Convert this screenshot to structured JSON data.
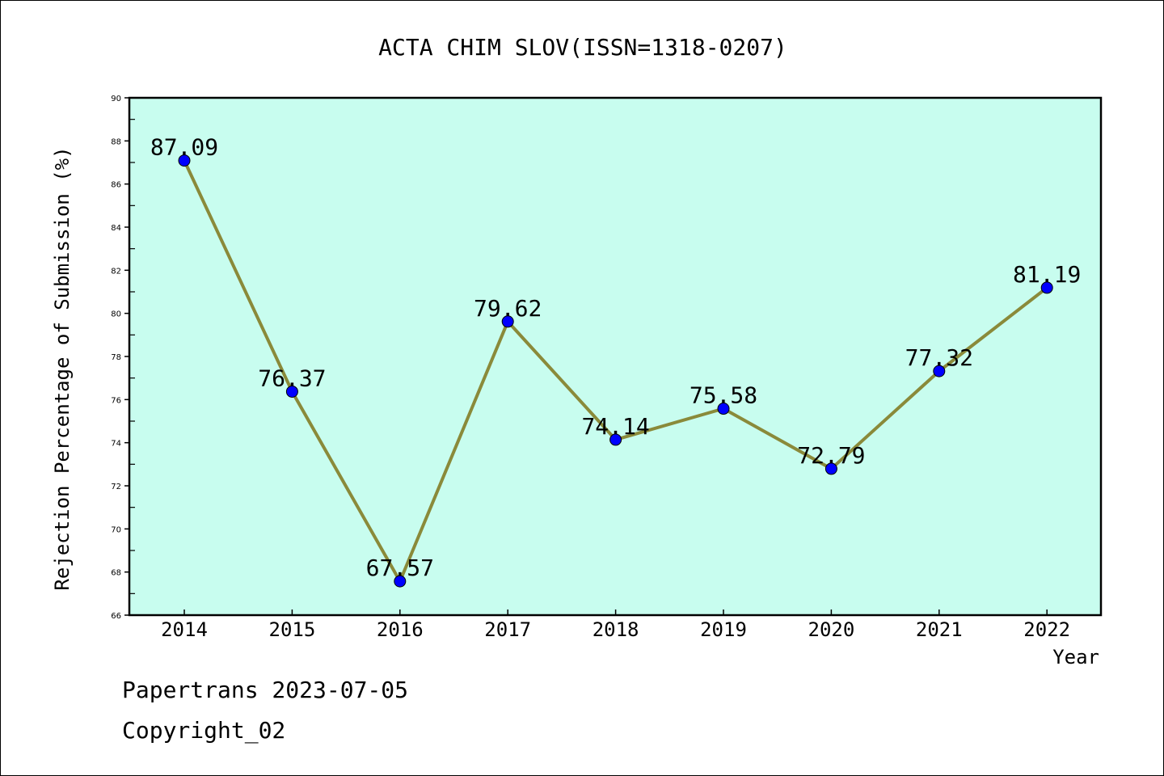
{
  "chart_data": {
    "type": "line",
    "title": "ACTA CHIM SLOV(ISSN=1318-0207)",
    "xlabel": "Year",
    "ylabel": "Rejection Percentage of Submission (%)",
    "categories": [
      "2014",
      "2015",
      "2016",
      "2017",
      "2018",
      "2019",
      "2020",
      "2021",
      "2022"
    ],
    "series": [
      {
        "values": [
          87.09,
          76.37,
          67.57,
          79.62,
          74.14,
          75.58,
          72.79,
          77.32,
          81.19
        ],
        "data_labels": [
          "87.09",
          "76.37",
          "67.57",
          "79.62",
          "74.14",
          "75.58",
          "72.79",
          "77.32",
          "81.19"
        ]
      }
    ],
    "ylim": [
      66,
      90
    ],
    "yticks": [
      "66",
      "68",
      "70",
      "72",
      "74",
      "76",
      "78",
      "80",
      "82",
      "84",
      "86",
      "88",
      "90"
    ],
    "grid": false,
    "colors": {
      "plot_background": "#c8fdef",
      "line": "#8a8a3a",
      "marker": "#0000ff"
    }
  },
  "footer": {
    "line1": "Papertrans 2023-07-05",
    "line2": "Copyright_02"
  }
}
